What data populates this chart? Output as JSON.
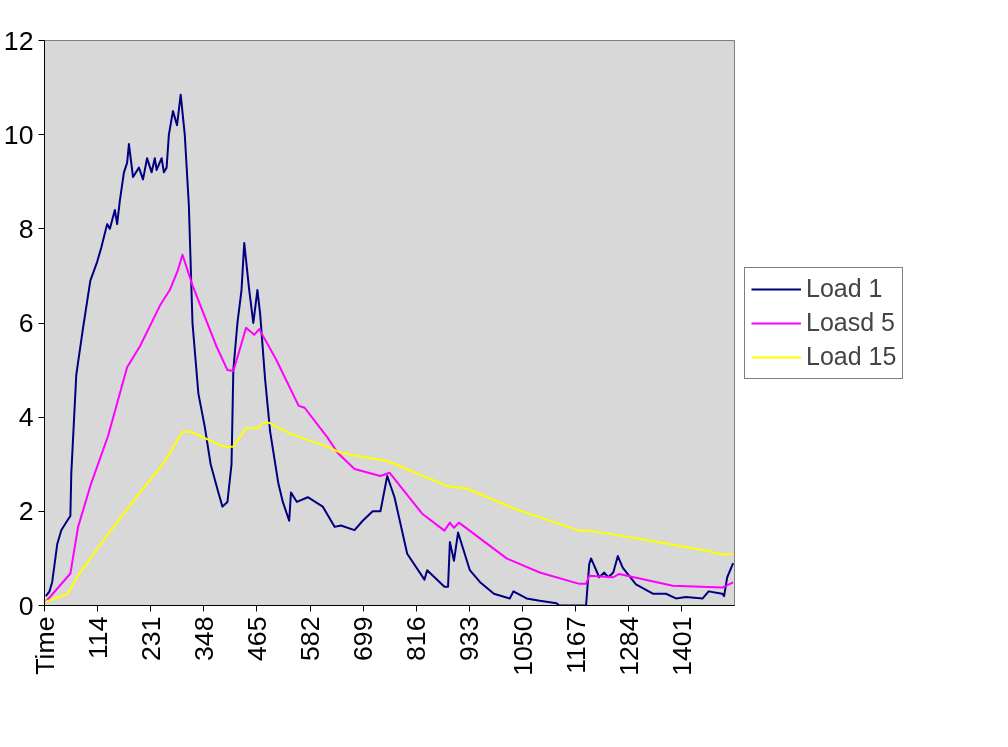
{
  "chart_data": {
    "type": "line",
    "xlim": [
      -3,
      1517
    ],
    "ylim": [
      0,
      12
    ],
    "yticks": [
      0,
      2,
      4,
      6,
      8,
      10,
      12
    ],
    "xticks": [
      {
        "value": -3,
        "label": "Time"
      },
      114,
      231,
      348,
      465,
      582,
      699,
      816,
      933,
      1050,
      1167,
      1284,
      1401
    ],
    "legend": "right",
    "series": [
      {
        "name": "Load 1",
        "color": "#000080",
        "x": [
          0,
          8,
          14,
          25,
          34,
          47,
          54,
          56,
          67,
          82,
          98,
          113,
          122,
          135,
          141,
          152,
          157,
          163,
          172,
          179,
          183,
          192,
          205,
          214,
          223,
          233,
          240,
          244,
          255,
          260,
          266,
          271,
          280,
          289,
          297,
          306,
          315,
          323,
          336,
          350,
          363,
          380,
          389,
          400,
          409,
          413,
          422,
          431,
          437,
          448,
          457,
          466,
          472,
          483,
          494,
          512,
          522,
          536,
          540,
          553,
          577,
          610,
          636,
          650,
          680,
          698,
          720,
          737,
          752,
          768,
          796,
          834,
          840,
          878,
          886,
          890,
          899,
          908,
          934,
          956,
          987,
          1022,
          1030,
          1059,
          1088,
          1125,
          1131,
          1190,
          1197,
          1201,
          1219,
          1230,
          1239,
          1250,
          1260,
          1271,
          1300,
          1337,
          1366,
          1388,
          1410,
          1447,
          1460,
          1490,
          1494,
          1501,
          1514
        ],
        "values": [
          0.2,
          0.3,
          0.5,
          1.3,
          1.6,
          1.8,
          1.9,
          2.8,
          4.9,
          5.9,
          6.9,
          7.3,
          7.6,
          8.1,
          8.0,
          8.4,
          8.1,
          8.6,
          9.2,
          9.4,
          9.8,
          9.1,
          9.3,
          9.05,
          9.5,
          9.2,
          9.5,
          9.25,
          9.5,
          9.2,
          9.3,
          10.0,
          10.5,
          10.2,
          10.85,
          10.0,
          8.5,
          6.0,
          4.5,
          3.8,
          3.0,
          2.4,
          2.1,
          2.2,
          3.0,
          5.0,
          6.0,
          6.7,
          7.7,
          6.7,
          6.0,
          6.7,
          6.2,
          4.8,
          3.7,
          2.6,
          2.2,
          1.8,
          2.4,
          2.2,
          2.3,
          2.1,
          1.67,
          1.7,
          1.6,
          1.8,
          2.0,
          2.0,
          2.75,
          2.3,
          1.1,
          0.55,
          0.75,
          0.4,
          0.4,
          1.35,
          0.95,
          1.55,
          0.75,
          0.5,
          0.25,
          0.15,
          0.3,
          0.15,
          0.1,
          0.05,
          0,
          0,
          0.88,
          1.0,
          0.6,
          0.7,
          0.6,
          0.7,
          1.05,
          0.8,
          0.45,
          0.25,
          0.25,
          0.15,
          0.18,
          0.15,
          0.3,
          0.25,
          0.2,
          0.6,
          0.9
        ]
      },
      {
        "name": "Loasd 5",
        "color": "#ff00ff",
        "x": [
          0,
          54,
          71,
          100,
          137,
          179,
          207,
          253,
          273,
          290,
          301,
          323,
          376,
          400,
          413,
          426,
          441,
          459,
          470,
          507,
          557,
          570,
          621,
          643,
          680,
          737,
          757,
          829,
          878,
          890,
          899,
          910,
          1015,
          1088,
          1175,
          1190,
          1197,
          1250,
          1263,
          1381,
          1490,
          1514
        ],
        "values": [
          0.08,
          0.68,
          1.67,
          2.6,
          3.6,
          5.06,
          5.5,
          6.4,
          6.7,
          7.1,
          7.45,
          6.8,
          5.5,
          5.0,
          4.98,
          5.4,
          5.9,
          5.75,
          5.87,
          5.23,
          4.24,
          4.2,
          3.56,
          3.24,
          2.9,
          2.75,
          2.82,
          1.95,
          1.59,
          1.76,
          1.65,
          1.76,
          1.0,
          0.7,
          0.46,
          0.46,
          0.63,
          0.6,
          0.67,
          0.42,
          0.38,
          0.49
        ]
      },
      {
        "name": "Load 15",
        "color": "#ffff00",
        "x": [
          0,
          48,
          71,
          128,
          203,
          260,
          301,
          319,
          393,
          413,
          441,
          468,
          479,
          492,
          540,
          621,
          650,
          752,
          884,
          928,
          1031,
          1175,
          1197,
          1307,
          1453,
          1490,
          1514
        ],
        "values": [
          0.08,
          0.25,
          0.64,
          1.4,
          2.35,
          3.03,
          3.69,
          3.69,
          3.37,
          3.37,
          3.77,
          3.77,
          3.88,
          3.88,
          3.64,
          3.37,
          3.24,
          3.07,
          2.54,
          2.48,
          2.06,
          1.59,
          1.59,
          1.42,
          1.17,
          1.08,
          1.1
        ]
      }
    ]
  }
}
